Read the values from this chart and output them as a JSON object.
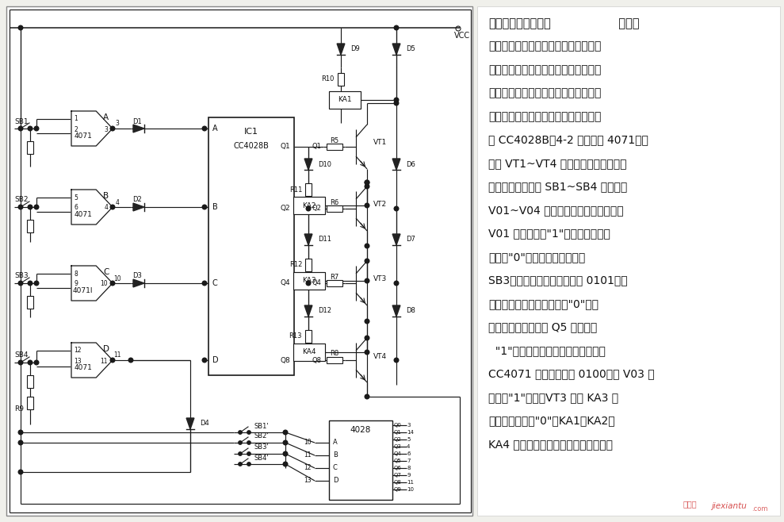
{
  "bg_color": "#f0f0eb",
  "line_color": "#1a1a1a",
  "title_bold": "四状态互锁控制电路",
  "title_rest": "  本电路",
  "description_lines": [
    "要求在任何时刻只允许一种状态工作，",
    "而排斥其他状态，且要求任一状态工作",
    "时，能立即进人工作状态，且其他状态",
    "由工作转为停止。该电路由卜进制译码",
    "器 CC4028B、4-2 输人或门 4071、晶",
    "体管 VT1~VT4 及继电器等组成。电路",
    "工作时，按钮开关 SB1~SB4 分别对应",
    "V01~V04 输出。设电路的原始状态是",
    "V01 输出高电平\"1\"，其余输出全是",
    "低电平\"0\"状态。如果接着按下",
    "SB3，则译码器的输入码变成 0101，立",
    "即使四个输出全变为低电平\"0\"状态",
    "（而未使用的输出端 Q5 为高电平",
    "  \"1\"），经过各输出端的反馈到或门",
    "CC4071 使输人码变为 0100，则 V03 为",
    "高电平\"1\"状态，VT3 驱动 KA3 工",
    "作，其他状态为\"0\"，KA1、KA2、",
    "KA4 不工作。其他状态分析过程相同。"
  ],
  "watermark": "jiexiantu"
}
